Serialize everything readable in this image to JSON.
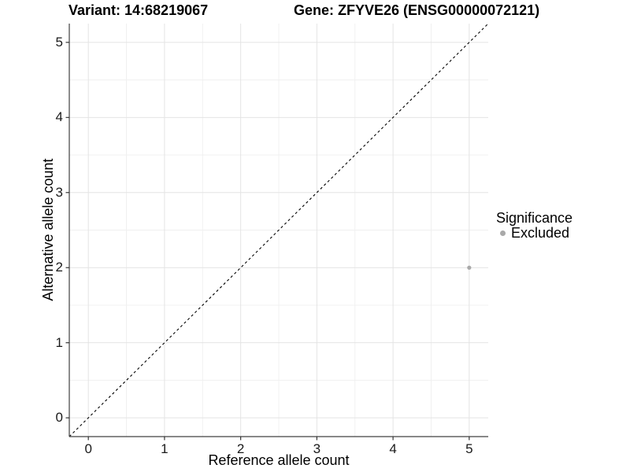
{
  "figure": {
    "title_variant": "Variant: 14:68219067",
    "title_gene": "Gene: ZFYVE26 (ENSG00000072121)"
  },
  "axes": {
    "x_label": "Reference allele count",
    "y_label": "Alternative allele count"
  },
  "legend": {
    "title": "Significance",
    "items": [
      {
        "label": "Excluded",
        "color": "#a9a9a9"
      }
    ]
  },
  "chart_data": {
    "type": "scatter",
    "title": "Variant: 14:68219067 | Gene: ZFYVE26 (ENSG00000072121)",
    "xlabel": "Reference allele count",
    "ylabel": "Alternative allele count",
    "xlim": [
      -0.25,
      5.25
    ],
    "ylim": [
      -0.25,
      5.25
    ],
    "x_ticks": [
      0,
      1,
      2,
      3,
      4,
      5
    ],
    "y_ticks": [
      0,
      1,
      2,
      3,
      4,
      5
    ],
    "grid": true,
    "minor_grid": true,
    "legend_position": "right",
    "identity_line": {
      "style": "dashed",
      "from": [
        -0.25,
        -0.25
      ],
      "to": [
        5.25,
        5.25
      ],
      "color": "#000000"
    },
    "series": [
      {
        "name": "Excluded",
        "color": "#a9a9a9",
        "points": [
          {
            "x": 5,
            "y": 2
          }
        ]
      }
    ],
    "colors": {
      "grid_major": "#e4e4e4",
      "grid_minor": "#f0f0f0",
      "axis_line": "#404040",
      "tick_mark": "#333333",
      "background": "#ffffff"
    }
  }
}
